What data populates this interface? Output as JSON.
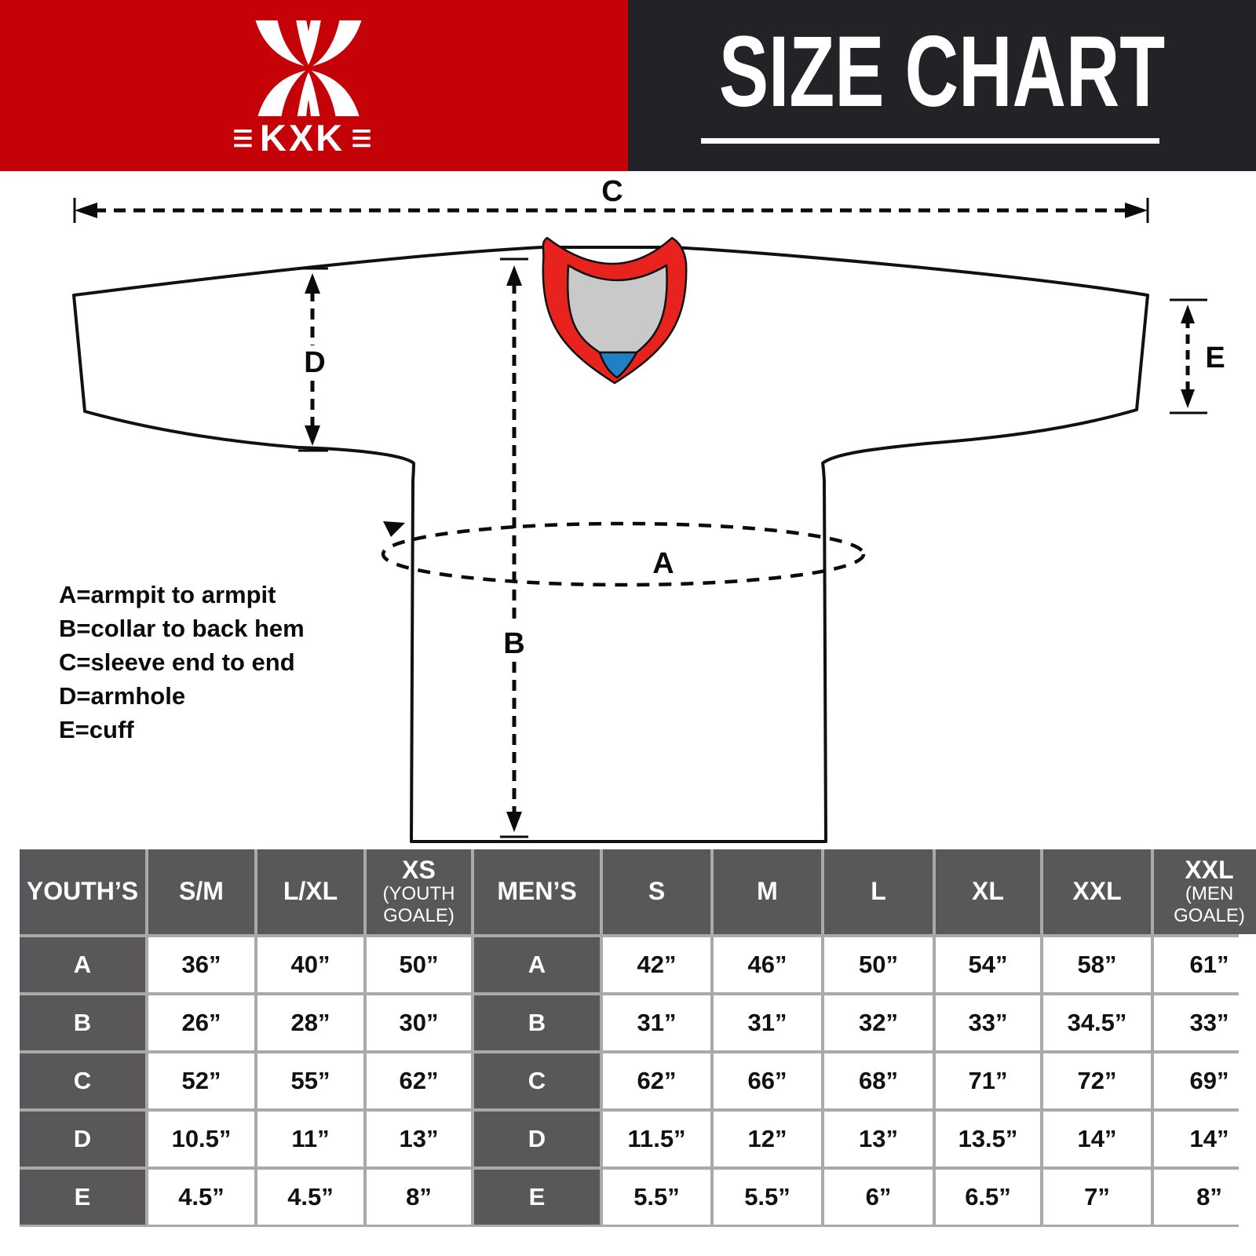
{
  "header": {
    "logo_text": "KXK",
    "logo_bars": "≡",
    "title": "SIZE CHART",
    "brand_red": "#C60209",
    "header_black": "#232227"
  },
  "diagram": {
    "labels": {
      "A": "A",
      "B": "B",
      "C": "C",
      "D": "D",
      "E": "E"
    },
    "legend": [
      "A=armpit to armpit",
      "B=collar to back hem",
      "C=sleeve end to end",
      "D=armhole",
      "E=cuff"
    ],
    "colors": {
      "collar_red": "#E8231E",
      "collar_gray": "#C9C9C9",
      "collar_blue": "#2080C6",
      "outline": "#111111"
    }
  },
  "size_table": {
    "colors": {
      "header_cell": "#59575A",
      "grid_gap": "#A9A9AB",
      "value_cell": "#FFFFFF"
    },
    "columns": [
      {
        "label": "YOUTH’S",
        "kind": "label"
      },
      {
        "label": "S/M",
        "kind": "size"
      },
      {
        "label": "L/XL",
        "kind": "size"
      },
      {
        "label": "XS",
        "sub": [
          "(YOUTH",
          "GOALE)"
        ],
        "kind": "size"
      },
      {
        "label": "MEN’S",
        "kind": "label"
      },
      {
        "label": "S",
        "kind": "size"
      },
      {
        "label": "M",
        "kind": "size"
      },
      {
        "label": "L",
        "kind": "size"
      },
      {
        "label": "XL",
        "kind": "size"
      },
      {
        "label": "XXL",
        "kind": "size"
      },
      {
        "label": "XXL",
        "sub": [
          "(MEN",
          "GOALE)"
        ],
        "kind": "size"
      }
    ],
    "rows": [
      {
        "label": "A",
        "youth": [
          "36”",
          "40”",
          "50”"
        ],
        "men": [
          "42”",
          "46”",
          "50”",
          "54”",
          "58”",
          "61”"
        ]
      },
      {
        "label": "B",
        "youth": [
          "26”",
          "28”",
          "30”"
        ],
        "men": [
          "31”",
          "31”",
          "32”",
          "33”",
          "34.5”",
          "33”"
        ]
      },
      {
        "label": "C",
        "youth": [
          "52”",
          "55”",
          "62”"
        ],
        "men": [
          "62”",
          "66”",
          "68”",
          "71”",
          "72”",
          "69”"
        ]
      },
      {
        "label": "D",
        "youth": [
          "10.5”",
          "11”",
          "13”"
        ],
        "men": [
          "11.5”",
          "12”",
          "13”",
          "13.5”",
          "14”",
          "14”"
        ]
      },
      {
        "label": "E",
        "youth": [
          "4.5”",
          "4.5”",
          "8”"
        ],
        "men": [
          "5.5”",
          "5.5”",
          "6”",
          "6.5”",
          "7”",
          "8”"
        ]
      }
    ]
  }
}
